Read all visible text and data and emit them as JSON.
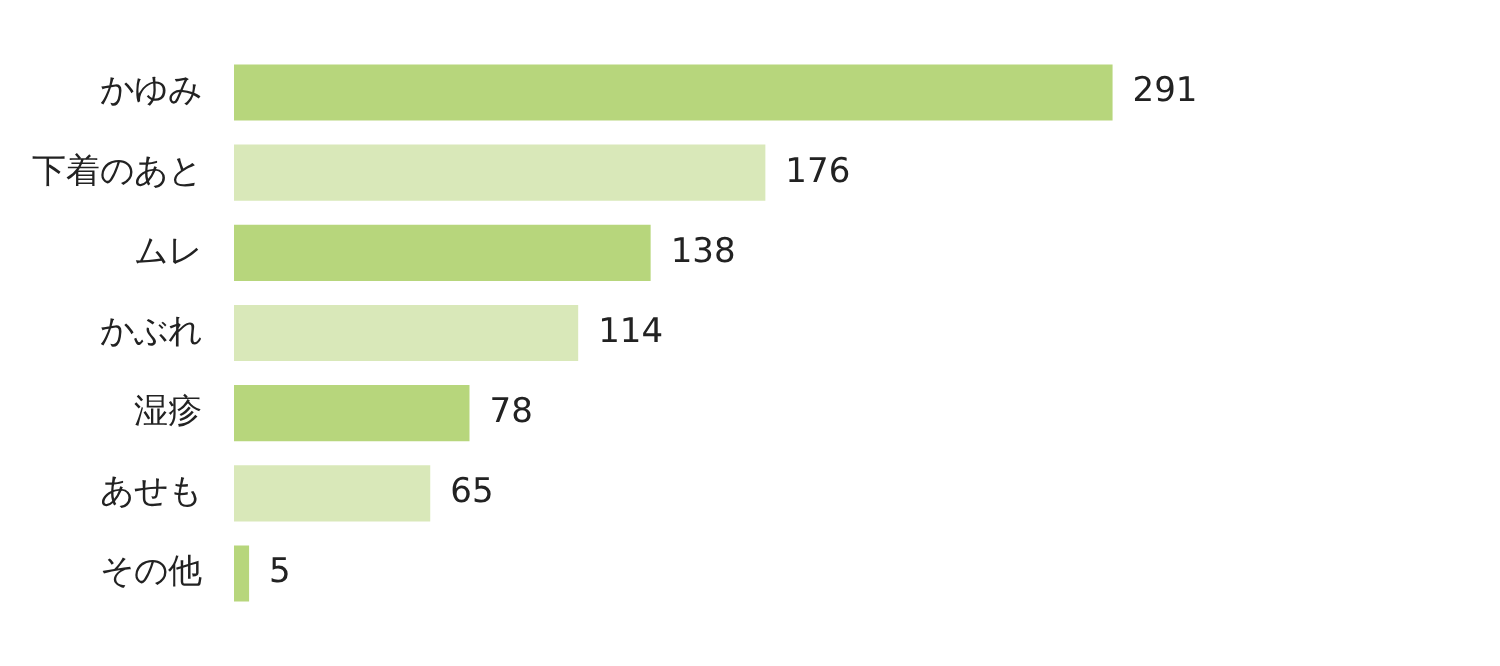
{
  "chart_data": {
    "type": "bar",
    "orientation": "horizontal",
    "categories": [
      "かゆみ",
      "下着のあと",
      "ムレ",
      "かぶれ",
      "湿疹",
      "あせも",
      "その他"
    ],
    "values": [
      291,
      176,
      138,
      114,
      78,
      65,
      5
    ],
    "colors": [
      "#b7d67c",
      "#d9e8b9",
      "#b7d67c",
      "#d9e8b9",
      "#b7d67c",
      "#d9e8b9",
      "#b7d67c"
    ],
    "data_labels": true,
    "legend": false
  }
}
